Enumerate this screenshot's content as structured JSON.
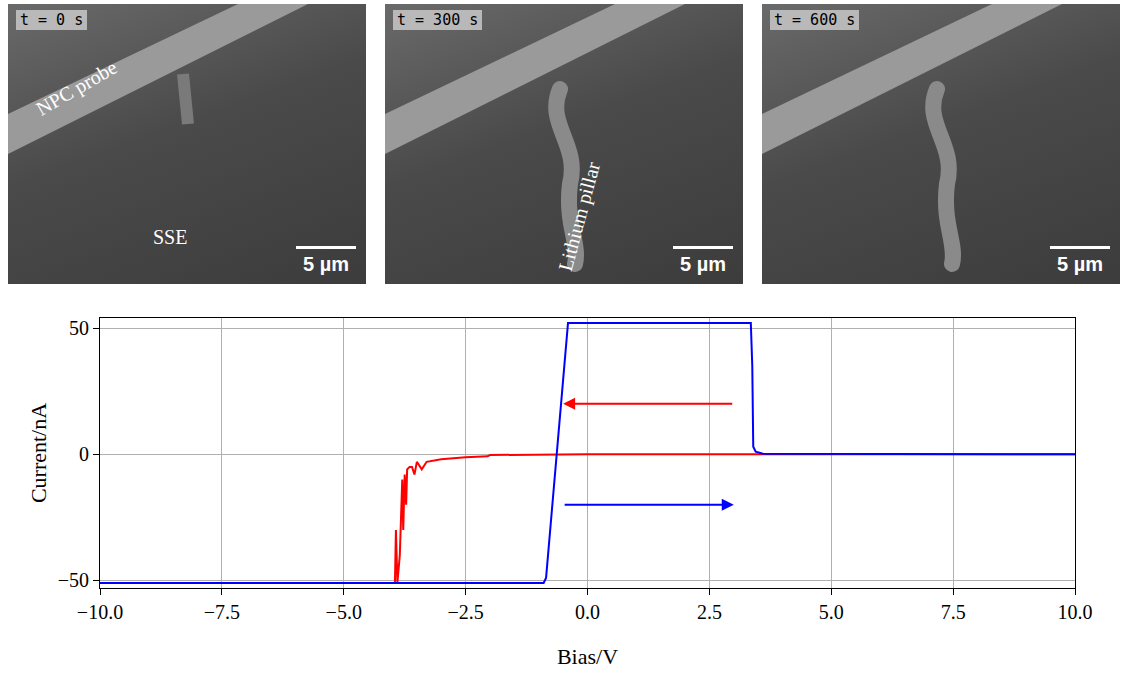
{
  "panels": [
    {
      "time_label": "t = 0 s",
      "labels": [
        "NPC probe",
        "SSE"
      ],
      "scale_bar": "5 µm"
    },
    {
      "time_label": "t = 300 s",
      "labels": [
        "Lithium pillar"
      ],
      "scale_bar": "5 µm"
    },
    {
      "time_label": "t = 600 s",
      "labels": [],
      "scale_bar": "5 µm"
    }
  ],
  "chart_data": {
    "type": "line",
    "x_label": "Bias/V",
    "y_label": "Current/nA",
    "xlim": [
      -10,
      10
    ],
    "ylim": [
      -53,
      54
    ],
    "xticks": [
      {
        "value": -10,
        "label": "−10.0"
      },
      {
        "value": -7.5,
        "label": "−7.5"
      },
      {
        "value": -5,
        "label": "−5.0"
      },
      {
        "value": -2.5,
        "label": "−2.5"
      },
      {
        "value": 0,
        "label": "0.0"
      },
      {
        "value": 2.5,
        "label": "2.5"
      },
      {
        "value": 5,
        "label": "5.0"
      },
      {
        "value": 7.5,
        "label": "7.5"
      },
      {
        "value": 10,
        "label": "10.0"
      }
    ],
    "yticks": [
      {
        "value": -50,
        "label": "−50"
      },
      0,
      50
    ],
    "grid": true,
    "series": [
      {
        "color": "#ff0000",
        "x": [
          10,
          5,
          0,
          -2.0,
          -2.05,
          -2.5,
          -3.0,
          -3.3,
          -3.4,
          -3.5,
          -3.55,
          -3.6,
          -3.65,
          -3.7,
          -3.72,
          -3.75,
          -3.78,
          -3.8,
          -3.85,
          -3.9,
          -3.93,
          -3.95,
          -4.0,
          -10
        ],
        "values": [
          0,
          0,
          0,
          -0.3,
          -0.8,
          -1.2,
          -2,
          -3,
          -6,
          -3,
          -8,
          -5,
          -5,
          -6,
          -20,
          -8,
          -30,
          -10,
          -40,
          -51,
          -30,
          -51,
          -51,
          -51
        ]
      },
      {
        "color": "#0000ff",
        "x": [
          -10,
          -0.9,
          -0.85,
          -0.4,
          3.35,
          3.38,
          3.4,
          3.45,
          3.6,
          10
        ],
        "values": [
          -51,
          -51,
          -49,
          52,
          52,
          35,
          3,
          1,
          0.2,
          0
        ]
      }
    ],
    "arrows": [
      {
        "color": "#ff0000",
        "from": [
          3,
          20
        ],
        "to": [
          -0.5,
          20
        ]
      },
      {
        "color": "#0000ff",
        "from": [
          -0.5,
          -20
        ],
        "to": [
          3,
          -20
        ]
      }
    ]
  }
}
